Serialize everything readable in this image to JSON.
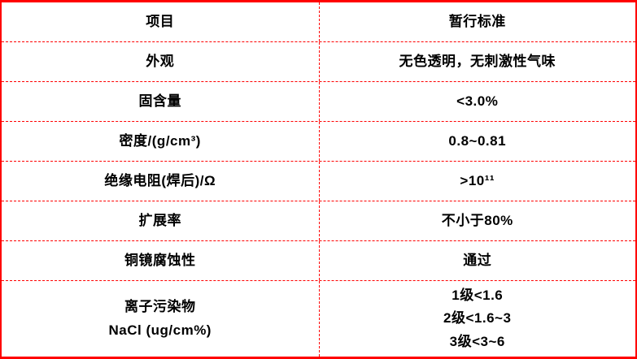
{
  "colors": {
    "border": "#FF0000",
    "text": "#000000",
    "background": "#FFFFFF"
  },
  "table": {
    "header": {
      "item": "项目",
      "standard": "暂行标准"
    },
    "rows": [
      {
        "item_lines": [
          "外观"
        ],
        "standard_lines": [
          "无色透明，无刺激性气味"
        ]
      },
      {
        "item_lines": [
          "固含量"
        ],
        "standard_lines": [
          "<3.0%"
        ]
      },
      {
        "item_lines": [
          "密度/(g/cm³)"
        ],
        "standard_lines": [
          "0.8~0.81"
        ]
      },
      {
        "item_lines": [
          "绝缘电阻(焊后)/Ω"
        ],
        "standard_lines": [
          ">10¹¹"
        ]
      },
      {
        "item_lines": [
          "扩展率"
        ],
        "standard_lines": [
          "不小于80%"
        ]
      },
      {
        "item_lines": [
          "铜镜腐蚀性"
        ],
        "standard_lines": [
          "通过"
        ]
      },
      {
        "item_lines": [
          "离子污染物",
          "NaCl (ug/cm%)"
        ],
        "standard_lines": [
          "1级<1.6",
          "2级<1.6~3",
          "3级<3~6"
        ]
      }
    ]
  }
}
